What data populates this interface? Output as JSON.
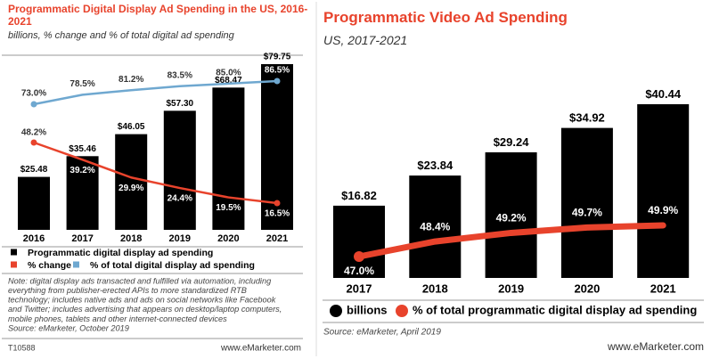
{
  "chart_data": [
    {
      "type": "bar",
      "title": "Programmatic Digital Display Ad Spending in the US, 2016-2021",
      "subtitle": "billions, % change and % of total digital ad spending",
      "categories": [
        "2016",
        "2017",
        "2018",
        "2019",
        "2020",
        "2021"
      ],
      "series": [
        {
          "name": "Programmatic digital display ad spending",
          "type": "bar",
          "color": "#000000",
          "values": [
            25.48,
            35.46,
            46.05,
            57.3,
            68.47,
            79.75
          ],
          "value_labels": [
            "$25.48",
            "$35.46",
            "$46.05",
            "$57.30",
            "$68.47",
            "$79.75"
          ]
        },
        {
          "name": "% change",
          "type": "line",
          "color": "#e8432c",
          "values": [
            48.2,
            39.2,
            29.9,
            24.4,
            19.5,
            16.5
          ],
          "value_labels": [
            "48.2%",
            "39.2%",
            "29.9%",
            "24.4%",
            "19.5%",
            "16.5%"
          ]
        },
        {
          "name": "% of total digital display ad spending",
          "type": "line",
          "color": "#6fa8d0",
          "values": [
            73.0,
            78.5,
            81.2,
            83.5,
            85.0,
            86.5
          ],
          "value_labels": [
            "73.0%",
            "78.5%",
            "81.2%",
            "83.5%",
            "85.0%",
            "86.5%"
          ]
        }
      ],
      "legend_marker": "square",
      "note": [
        "Note: digital display ads transacted and fulfilled via automation, including",
        "everything from publisher-erected APIs to more standardized RTB",
        "technology; includes native ads and ads on social networks like Facebook",
        "and Twitter; includes advertising that appears on desktop/laptop computers,",
        "mobile phones, tablets and other internet-connected devices",
        "Source: eMarketer, October 2019"
      ],
      "id": "T10588",
      "credit": "www.eMarketer.com"
    },
    {
      "type": "bar",
      "title": "Programmatic Video Ad Spending",
      "subtitle": "US, 2017-2021",
      "categories": [
        "2017",
        "2018",
        "2019",
        "2020",
        "2021"
      ],
      "series": [
        {
          "name": "billions",
          "type": "bar",
          "color": "#000000",
          "values": [
            16.82,
            23.84,
            29.24,
            34.92,
            40.44
          ],
          "value_labels": [
            "$16.82",
            "$23.84",
            "$29.24",
            "$34.92",
            "$40.44"
          ]
        },
        {
          "name": "% of total programmatic digital display ad spending",
          "type": "line",
          "color": "#e8432c",
          "values": [
            47.0,
            48.4,
            49.2,
            49.7,
            49.9
          ],
          "value_labels": [
            "47.0%",
            "48.4%",
            "49.2%",
            "49.7%",
            "49.9%"
          ]
        }
      ],
      "legend_marker": "circle",
      "note": [
        "Source: eMarketer, April 2019"
      ],
      "credit": "www.eMarketer.com"
    }
  ]
}
